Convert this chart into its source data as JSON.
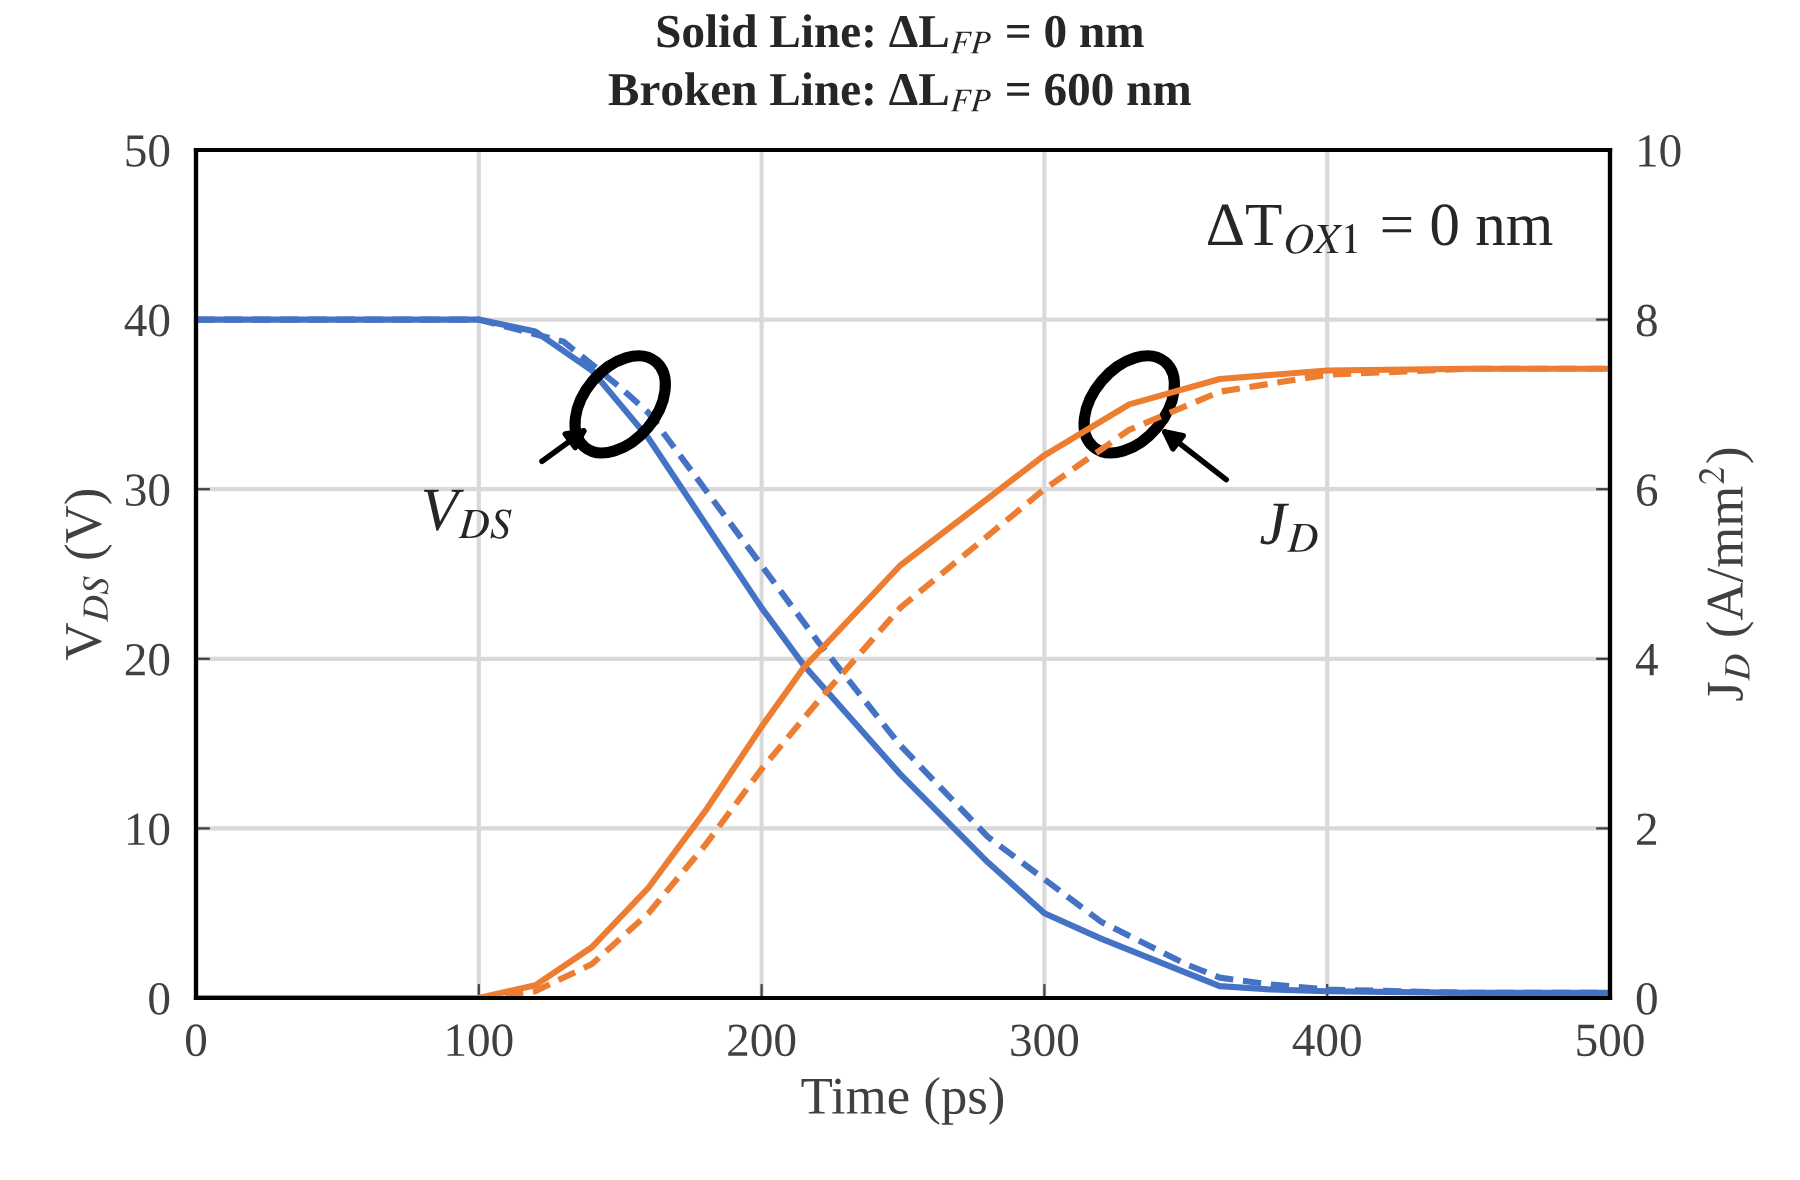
{
  "chart_data": {
    "type": "line",
    "title": "Solid Line: ΔL$_{FP}$ = 0 nm",
    "subtitle": "Broken Line: ΔL$_{FP}$ = 600 nm",
    "xlabel": "Time (ps)",
    "ylabel": "V$_{DS}$ (V)",
    "y2label": "J$_{D}$ (A/mm$^{2}$)",
    "xlim": [
      0,
      500
    ],
    "xticks": [
      0,
      100,
      200,
      300,
      400,
      500
    ],
    "ylim": [
      0,
      50
    ],
    "yticks": [
      0,
      10,
      20,
      30,
      40,
      50
    ],
    "y2lim": [
      0,
      10
    ],
    "y2ticks": [
      0,
      2,
      4,
      6,
      8,
      10
    ],
    "grid": true,
    "annotations": [
      "ΔT$_{OX1}$ = 0 nm",
      {
        "text": "V$_{DS}$",
        "x": 150,
        "y": 35
      },
      {
        "text": "J$_{D}$",
        "x": 330,
        "y": 35
      }
    ],
    "series": [
      {
        "color": "#4472c4",
        "line_style": "solid",
        "x": [
          0,
          100,
          120,
          140,
          150,
          160,
          180,
          200,
          215,
          249,
          280,
          300,
          320,
          350,
          362,
          380,
          400,
          450,
          500
        ],
        "values": [
          40,
          40,
          39.3,
          37,
          35,
          33,
          28,
          23,
          19.6,
          13.2,
          8,
          5,
          3.5,
          1.5,
          0.7,
          0.5,
          0.4,
          0.3,
          0.3
        ]
      },
      {
        "color": "#4472c4",
        "line_style": "dashed",
        "x": [
          0,
          100,
          130,
          150,
          160,
          180,
          200,
          220,
          249,
          280,
          300,
          320,
          350,
          362,
          380,
          400,
          450,
          500
        ],
        "values": [
          40,
          40,
          38.7,
          36,
          34.5,
          30,
          25.5,
          21,
          14.9,
          9.5,
          7,
          4.5,
          2,
          1.2,
          0.8,
          0.5,
          0.3,
          0.3
        ]
      },
      {
        "color": "#ed7d31",
        "line_style": "solid",
        "axis": "y2",
        "x": [
          0,
          100,
          120,
          140,
          160,
          180,
          200,
          215,
          249,
          300,
          330,
          362,
          400,
          450,
          500
        ],
        "values": [
          0,
          0,
          0.15,
          0.6,
          1.3,
          2.2,
          3.2,
          3.9,
          5.1,
          6.4,
          7.0,
          7.3,
          7.4,
          7.42,
          7.42
        ]
      },
      {
        "color": "#ed7d31",
        "line_style": "dashed",
        "axis": "y2",
        "x": [
          0,
          100,
          120,
          140,
          160,
          180,
          200,
          220,
          249,
          300,
          330,
          362,
          400,
          450,
          500
        ],
        "values": [
          0,
          0,
          0.08,
          0.4,
          1.0,
          1.8,
          2.7,
          3.5,
          4.6,
          6.0,
          6.7,
          7.15,
          7.35,
          7.42,
          7.42
        ]
      }
    ]
  }
}
